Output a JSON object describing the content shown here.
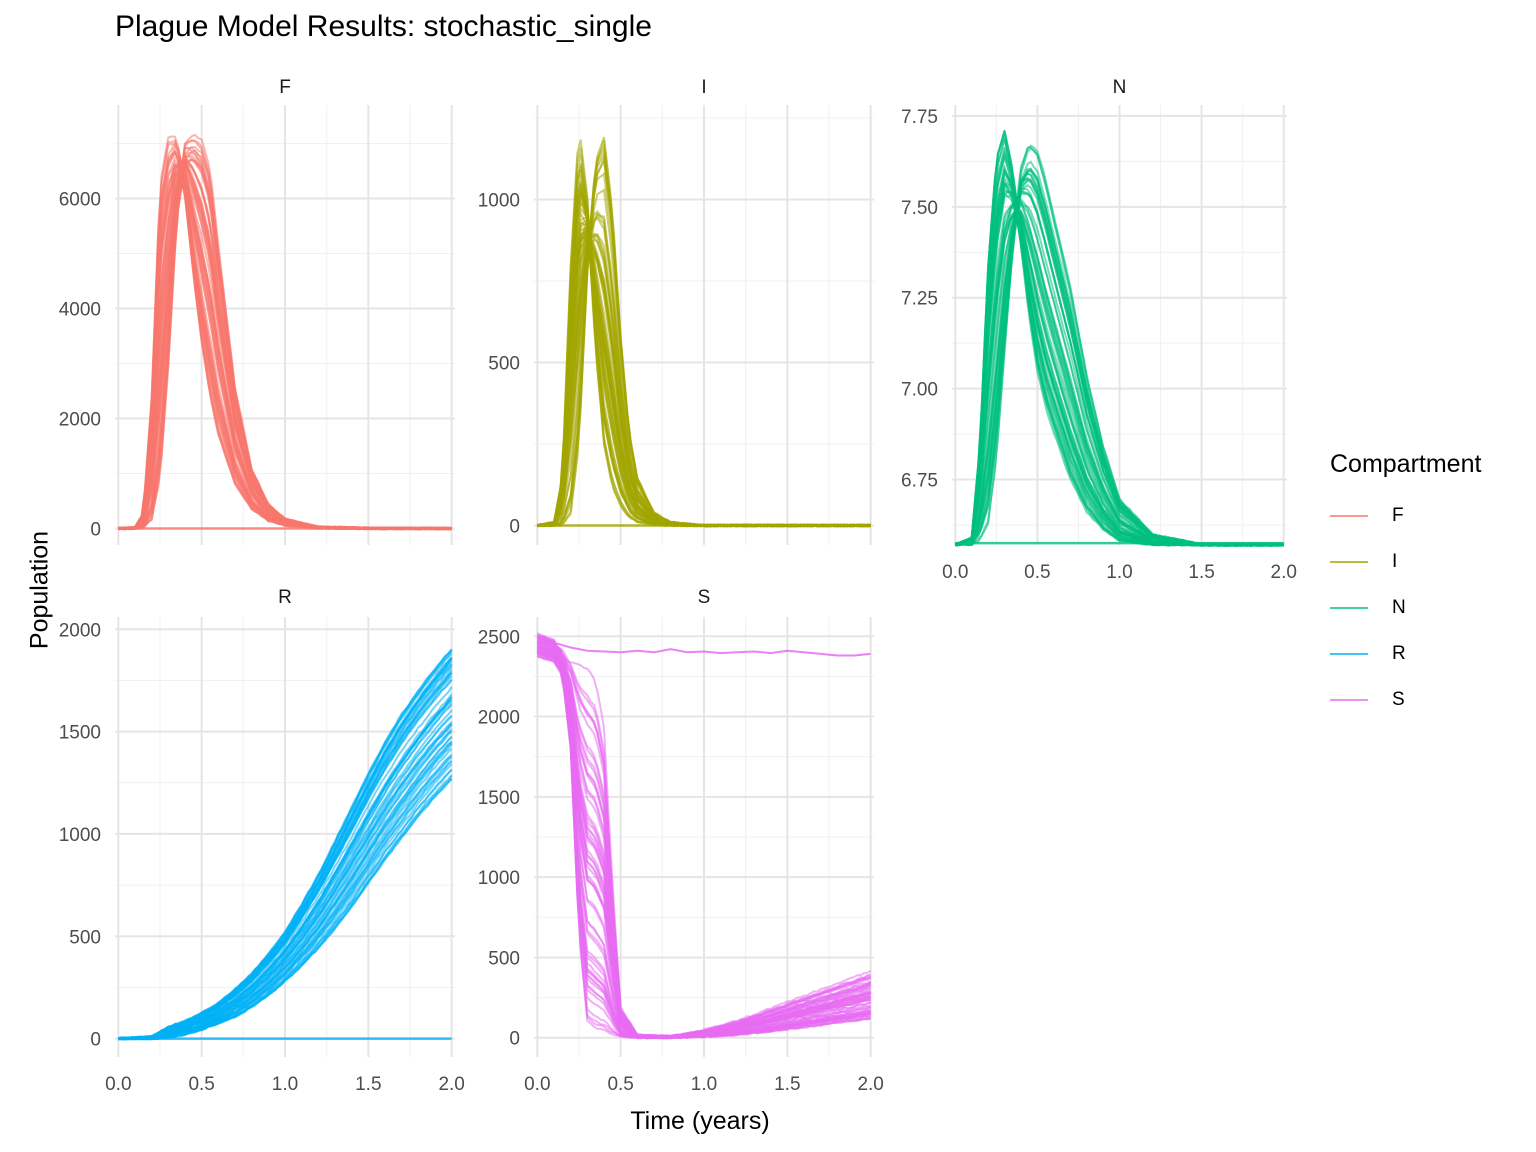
{
  "title": "Plague Model Results: stochastic_single",
  "xlabel": "Time (years)",
  "ylabel": "Population",
  "legend_title": "Compartment",
  "chart_data": {
    "type": "line",
    "title": "Plague Model Results: stochastic_single",
    "xlabel": "Time (years)",
    "ylabel": "Population",
    "legend": {
      "title": "Compartment",
      "placement": "right",
      "entries": [
        {
          "name": "F",
          "color": "#F8766D"
        },
        {
          "name": "I",
          "color": "#A3A500"
        },
        {
          "name": "N",
          "color": "#00BF7D"
        },
        {
          "name": "R",
          "color": "#00B0F6"
        },
        {
          "name": "S",
          "color": "#E76BF3"
        }
      ]
    },
    "grid": true,
    "facets": [
      {
        "name": "F",
        "color": "#F8766D",
        "xlim": [
          -0.02,
          2.02
        ],
        "ylim": [
          -300,
          7700
        ],
        "xticks": [
          "0.0",
          "0.5",
          "1.0",
          "1.5",
          "2.0"
        ],
        "yticks": [
          0,
          2000,
          4000,
          6000
        ],
        "show_x_ticks": false,
        "series_summary": "many stochastic runs; peak ~7000-7400 around t=0.3-0.5, decaying to ~0 by t=1.0; one flat run at 0",
        "envelope": {
          "x": [
            0.0,
            0.1,
            0.15,
            0.2,
            0.25,
            0.3,
            0.35,
            0.4,
            0.45,
            0.5,
            0.55,
            0.6,
            0.7,
            0.8,
            0.9,
            1.0,
            1.2,
            1.5,
            2.0
          ],
          "early": [
            0,
            20,
            300,
            2500,
            6500,
            7300,
            7200,
            6200,
            4600,
            3300,
            2300,
            1600,
            750,
            330,
            130,
            50,
            5,
            0,
            0
          ],
          "late": [
            0,
            0,
            10,
            150,
            900,
            3000,
            5800,
            7000,
            7200,
            7100,
            6600,
            5200,
            2600,
            1100,
            450,
            180,
            30,
            5,
            0
          ]
        }
      },
      {
        "name": "I",
        "color": "#A3A500",
        "xlim": [
          -0.02,
          2.02
        ],
        "ylim": [
          -60,
          1290
        ],
        "xticks": [
          "0.0",
          "0.5",
          "1.0",
          "1.5",
          "2.0"
        ],
        "yticks": [
          0,
          500,
          1000
        ],
        "show_x_ticks": false,
        "series_summary": "many stochastic runs; sharp peak ~1200-1250 around t=0.2-0.5; ~0 after t=0.7; one flat run at 0",
        "envelope": {
          "x": [
            0.0,
            0.1,
            0.15,
            0.2,
            0.25,
            0.3,
            0.35,
            0.4,
            0.45,
            0.5,
            0.55,
            0.6,
            0.7,
            0.8,
            1.0,
            2.0
          ],
          "early": [
            0,
            10,
            150,
            800,
            1220,
            1000,
            550,
            250,
            120,
            60,
            25,
            10,
            3,
            0,
            0,
            0
          ],
          "late": [
            0,
            0,
            0,
            30,
            250,
            800,
            1150,
            1230,
            1000,
            600,
            300,
            150,
            40,
            10,
            0,
            0
          ]
        }
      },
      {
        "name": "N",
        "color": "#00BF7D",
        "xlim": [
          -0.02,
          2.02
        ],
        "ylim": [
          6.57,
          7.78
        ],
        "xticks": [
          "0.0",
          "0.5",
          "1.0",
          "1.5",
          "2.0"
        ],
        "yticks": [
          6.75,
          7.0,
          7.25,
          7.5,
          7.75
        ],
        "ytick_labels": [
          "6.75",
          "7.00",
          "7.25",
          "7.50",
          "7.75"
        ],
        "show_x_ticks": true,
        "series_summary": "many stochastic runs; peak ~7.7 around t=0.3-0.5; returns to ~6.57 baseline by t=1.2",
        "envelope": {
          "x": [
            0.0,
            0.1,
            0.15,
            0.2,
            0.25,
            0.3,
            0.35,
            0.4,
            0.45,
            0.5,
            0.55,
            0.6,
            0.7,
            0.8,
            0.9,
            1.0,
            1.2,
            1.5,
            2.0
          ],
          "early": [
            6.57,
            6.59,
            6.85,
            7.35,
            7.65,
            7.72,
            7.6,
            7.4,
            7.2,
            7.05,
            6.95,
            6.88,
            6.75,
            6.66,
            6.61,
            6.58,
            6.57,
            6.57,
            6.57
          ],
          "late": [
            6.57,
            6.57,
            6.58,
            6.62,
            6.8,
            7.1,
            7.4,
            7.62,
            7.7,
            7.68,
            7.6,
            7.5,
            7.3,
            7.05,
            6.85,
            6.7,
            6.6,
            6.57,
            6.57
          ]
        }
      },
      {
        "name": "R",
        "color": "#00B0F6",
        "xlim": [
          -0.02,
          2.02
        ],
        "ylim": [
          -90,
          2060
        ],
        "xticks": [
          "0.0",
          "0.5",
          "1.0",
          "1.5",
          "2.0"
        ],
        "yticks": [
          0,
          500,
          1000,
          1500,
          2000
        ],
        "show_x_ticks": true,
        "series_summary": "many stochastic runs; slow sigmoidal rise from 0 at t=0.2 to ~1300-1970 at t=2.0; one flat run at 0",
        "envelope": {
          "x": [
            0.0,
            0.2,
            0.3,
            0.4,
            0.5,
            0.6,
            0.7,
            0.8,
            0.9,
            1.0,
            1.1,
            1.2,
            1.3,
            1.4,
            1.5,
            1.6,
            1.7,
            1.8,
            1.9,
            2.0
          ],
          "early": [
            0,
            10,
            60,
            90,
            130,
            180,
            250,
            330,
            430,
            540,
            680,
            830,
            1000,
            1170,
            1340,
            1500,
            1640,
            1760,
            1870,
            1970
          ],
          "late": [
            0,
            0,
            5,
            20,
            45,
            75,
            110,
            160,
            220,
            290,
            370,
            460,
            560,
            670,
            790,
            910,
            1020,
            1130,
            1230,
            1320
          ]
        }
      },
      {
        "name": "S",
        "color": "#E76BF3",
        "xlim": [
          -0.02,
          2.02
        ],
        "ylim": [
          -120,
          2620
        ],
        "xticks": [
          "0.0",
          "0.5",
          "1.0",
          "1.5",
          "2.0"
        ],
        "yticks": [
          0,
          500,
          1000,
          1500,
          2000,
          2500
        ],
        "show_x_ticks": true,
        "series_summary": "many stochastic runs; start at 2500, crash to ~0 between t=0.2 and t=0.5, slow recovery to ~100-430 by t=2.0; one run stays near 2400",
        "envelope": {
          "x": [
            0.0,
            0.1,
            0.15,
            0.2,
            0.25,
            0.3,
            0.35,
            0.4,
            0.45,
            0.5,
            0.6,
            0.8,
            1.0,
            1.2,
            1.4,
            1.6,
            1.8,
            2.0
          ],
          "early": [
            2500,
            2460,
            2350,
            1800,
            600,
            50,
            5,
            0,
            0,
            0,
            0,
            0,
            5,
            15,
            35,
            60,
            85,
            110
          ],
          "late": [
            2500,
            2470,
            2440,
            2420,
            2400,
            2380,
            2300,
            2000,
            1000,
            200,
            20,
            10,
            50,
            110,
            190,
            270,
            350,
            430
          ]
        },
        "persistent_run": {
          "x": [
            0.0,
            0.1,
            0.2,
            0.3,
            0.4,
            0.5,
            0.6,
            0.7,
            0.8,
            0.9,
            1.0,
            1.1,
            1.2,
            1.3,
            1.4,
            1.5,
            1.6,
            1.7,
            1.8,
            1.9,
            2.0
          ],
          "y": [
            2500,
            2460,
            2430,
            2410,
            2405,
            2400,
            2410,
            2400,
            2420,
            2400,
            2405,
            2395,
            2400,
            2405,
            2395,
            2410,
            2400,
            2390,
            2380,
            2380,
            2390
          ]
        }
      }
    ]
  }
}
